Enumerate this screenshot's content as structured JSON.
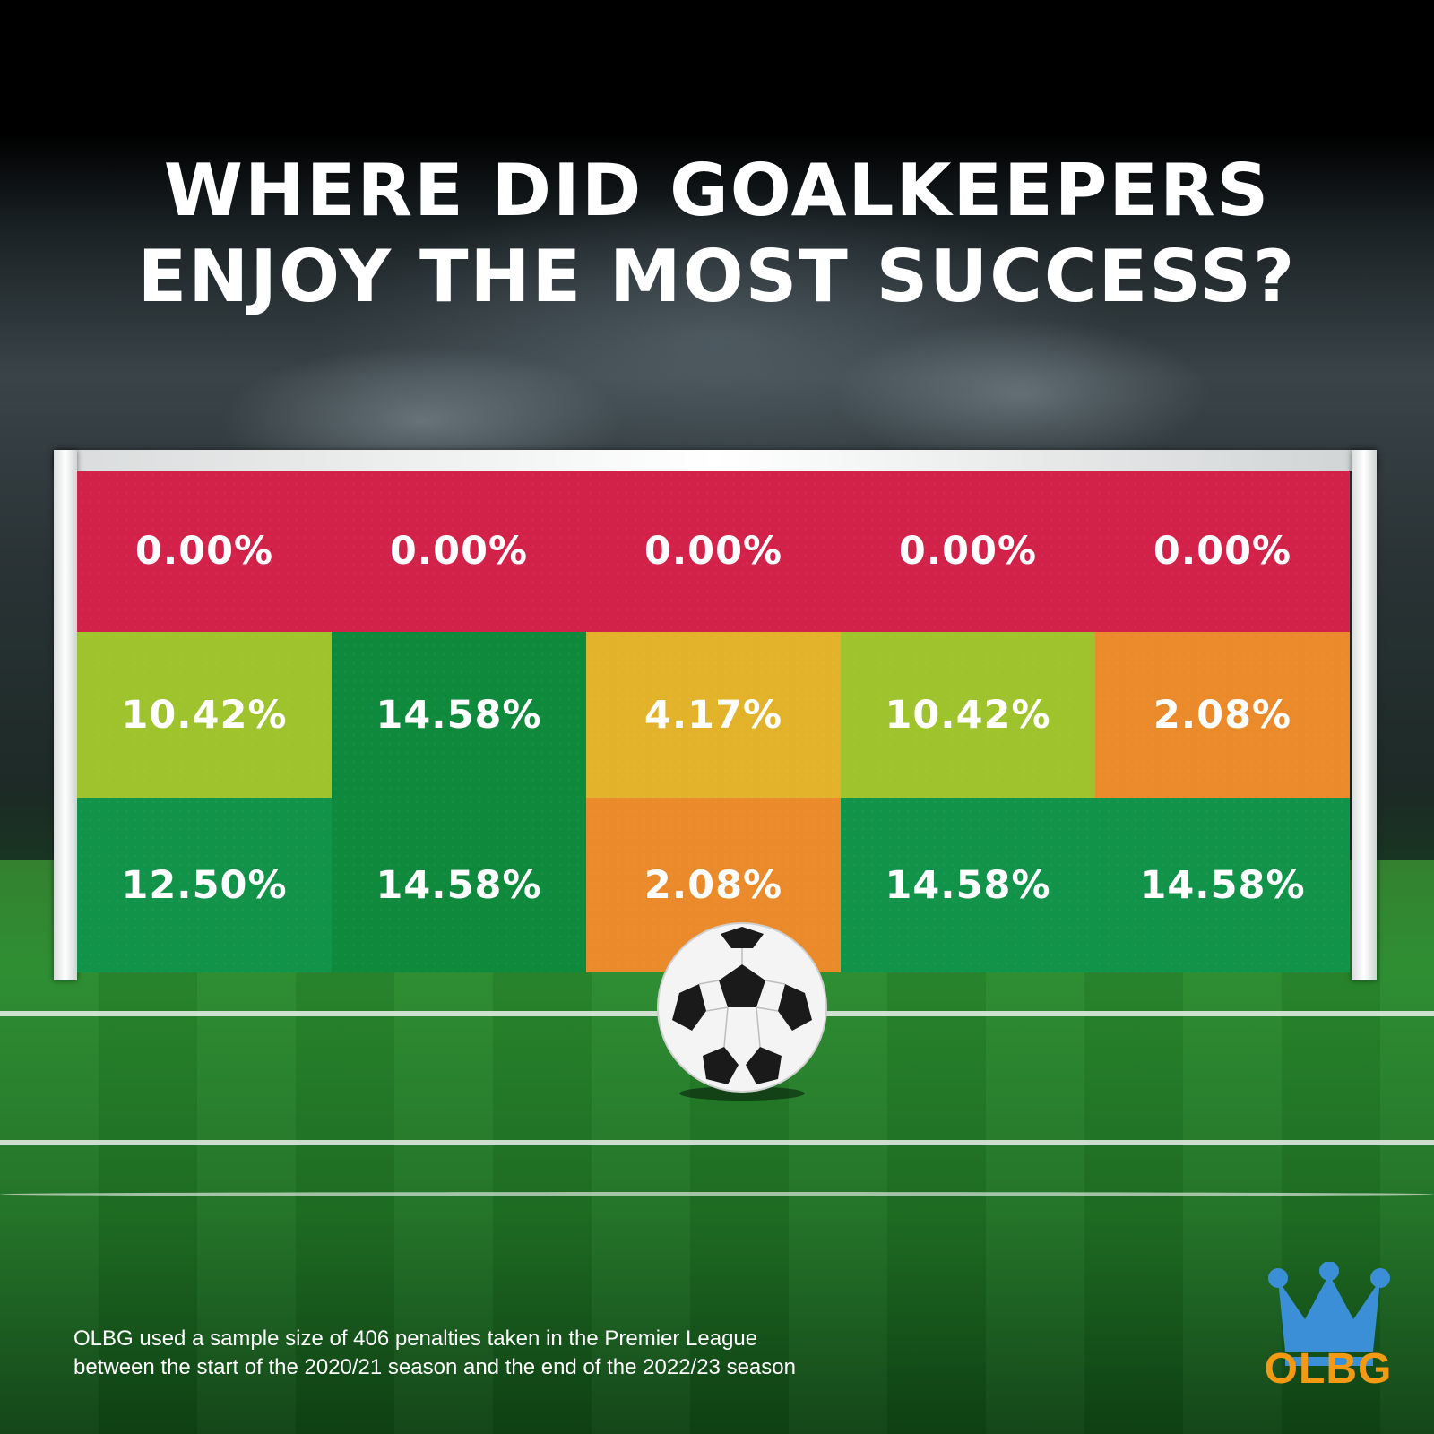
{
  "title_line1": "WHERE DID GOALKEEPERS",
  "title_line2": "ENJOY THE MOST SUCCESS?",
  "footnote_line1": "OLBG used a sample size of 406 penalties taken in the Premier League",
  "footnote_line2": "between the start of the 2020/21 season and the end of the 2022/23 season",
  "brand": "OLBG",
  "icons": [
    "crown-icon",
    "football-icon"
  ],
  "colors": {
    "red": "#d2224a",
    "light_green": "#9ec32c",
    "dark_green": "#0f8a3c",
    "green": "#12934a",
    "yellow": "#e2b22a",
    "orange": "#ea8a2a",
    "brand_orange": "#f39a12",
    "crown_blue": "#3a8fd6"
  },
  "chart_data": {
    "type": "heatmap",
    "rows": 3,
    "columns": 5,
    "values": [
      [
        0.0,
        0.0,
        0.0,
        0.0,
        0.0
      ],
      [
        10.42,
        14.58,
        4.17,
        10.42,
        2.08
      ],
      [
        12.5,
        14.58,
        2.08,
        14.58,
        14.58
      ]
    ],
    "labels": [
      [
        "0.00%",
        "0.00%",
        "0.00%",
        "0.00%",
        "0.00%"
      ],
      [
        "10.42%",
        "14.58%",
        "4.17%",
        "10.42%",
        "2.08%"
      ],
      [
        "12.50%",
        "14.58%",
        "2.08%",
        "14.58%",
        "14.58%"
      ]
    ],
    "cell_colors": [
      [
        "red",
        "red",
        "red",
        "red",
        "red"
      ],
      [
        "light_green",
        "dark_green",
        "yellow",
        "light_green",
        "orange"
      ],
      [
        "green",
        "dark_green",
        "orange",
        "green",
        "green"
      ]
    ],
    "merged_top_row": true
  }
}
